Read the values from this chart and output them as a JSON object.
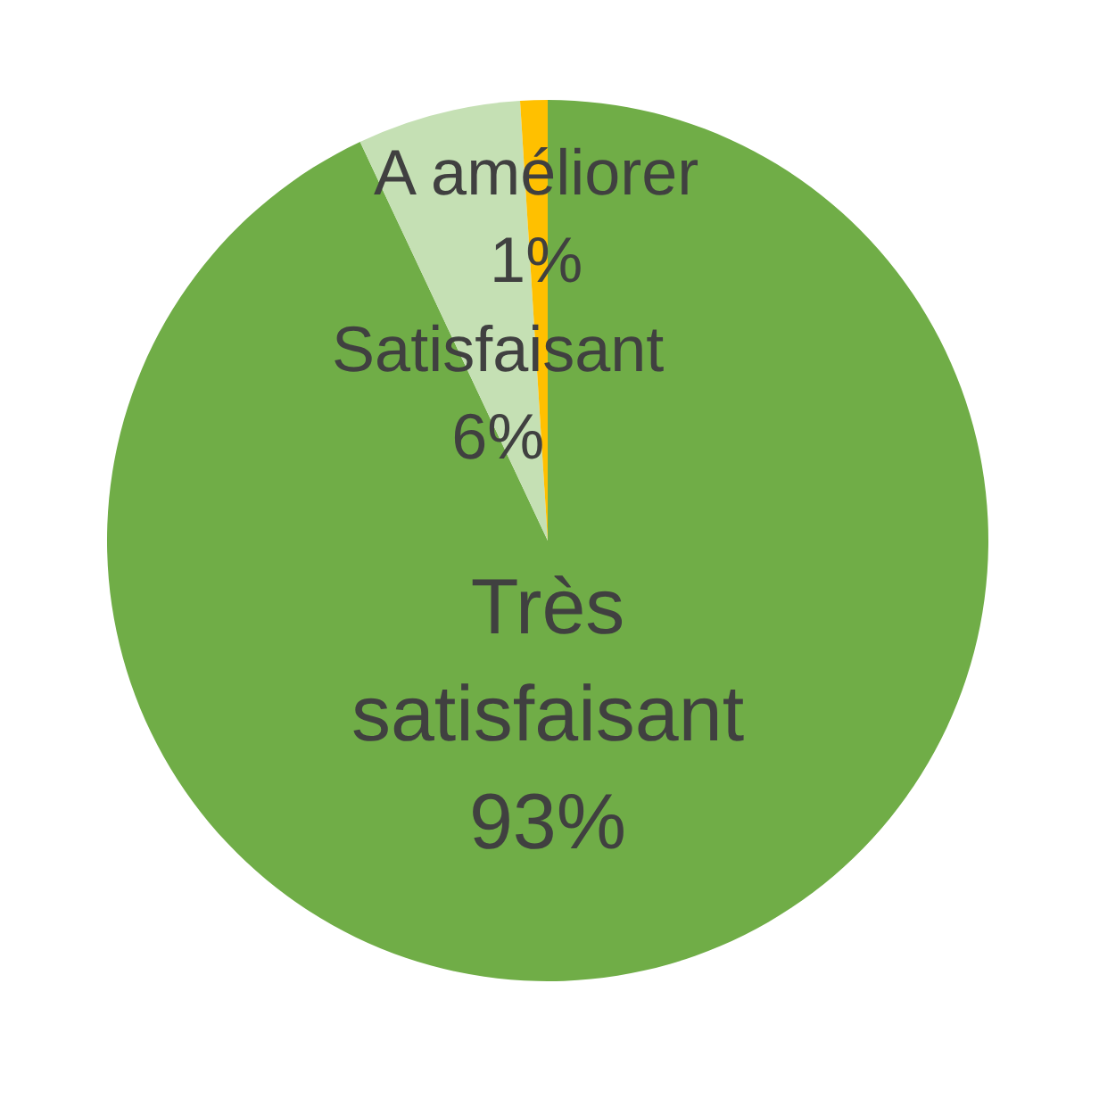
{
  "chart_data": {
    "type": "pie",
    "categories": [
      "Très satisfaisant",
      "Satisfaisant",
      "A améliorer"
    ],
    "values": [
      93,
      6,
      1
    ],
    "colors": [
      "#70ad47",
      "#c5e0b4",
      "#ffc000"
    ],
    "value_labels": [
      "93%",
      "6%",
      "1%"
    ]
  }
}
